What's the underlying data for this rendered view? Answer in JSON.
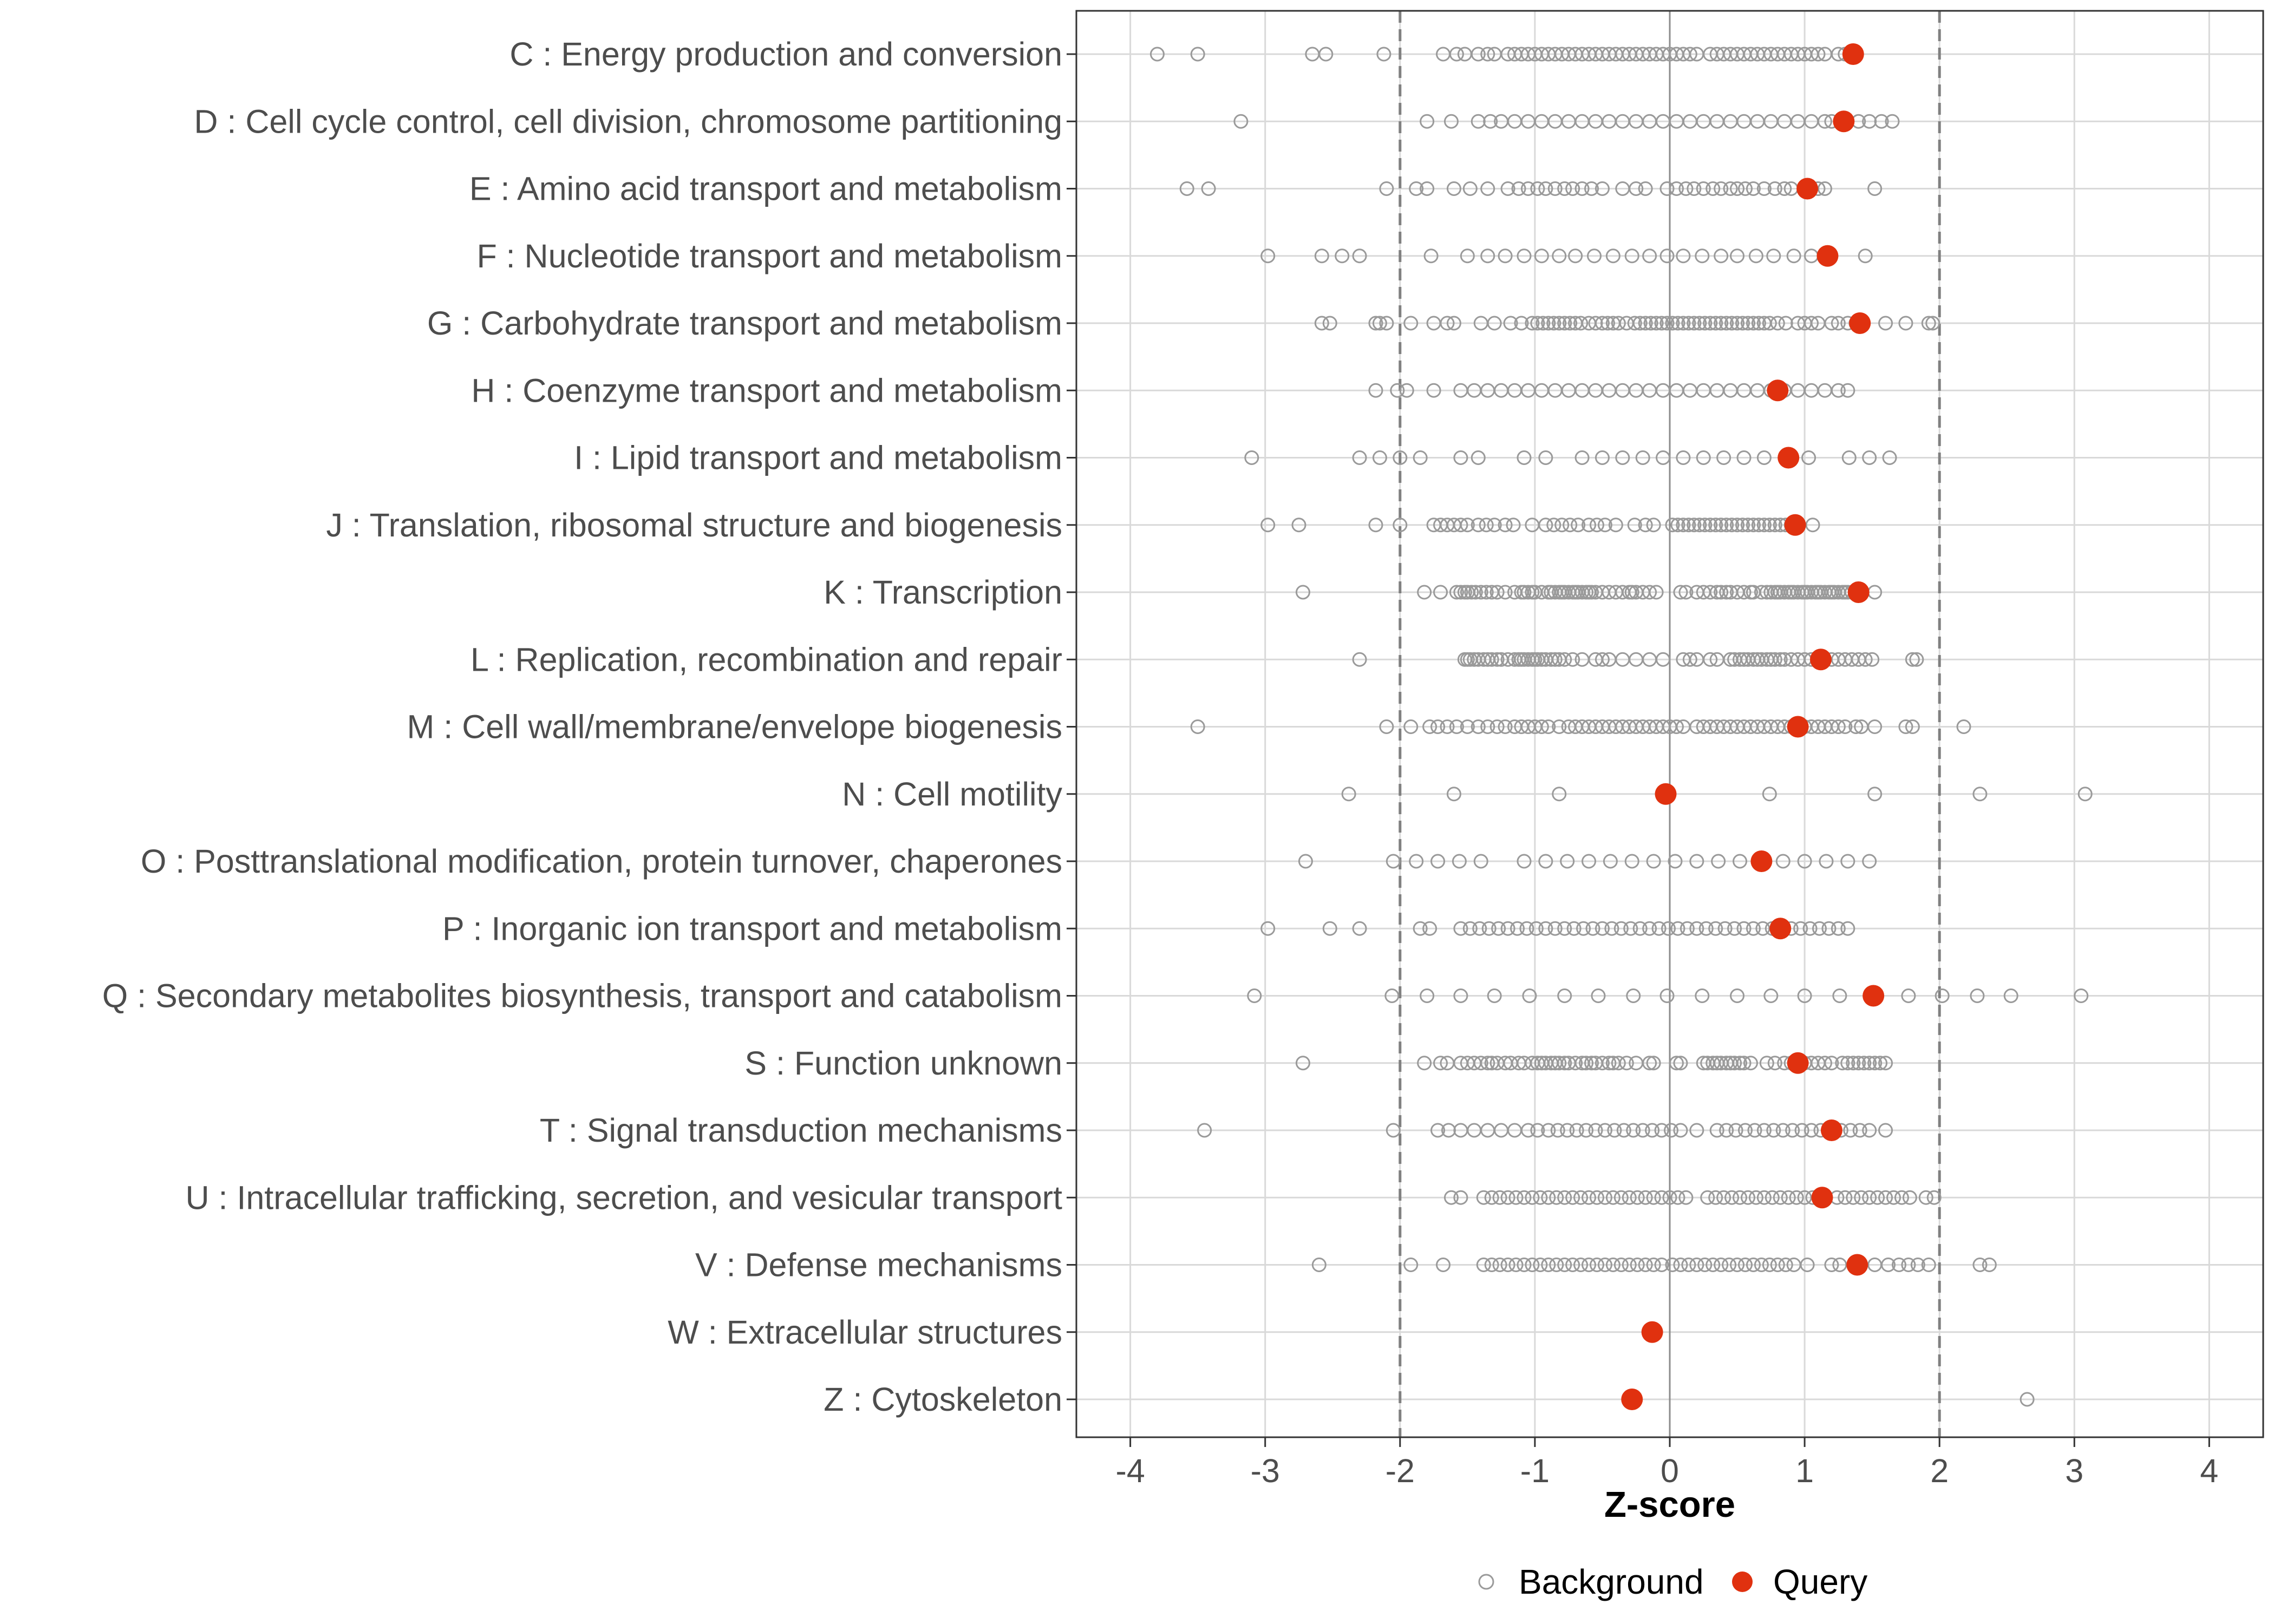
{
  "chart_data": {
    "type": "scatter",
    "xlabel": "Z-score",
    "xlim": [
      -4.4,
      4.4
    ],
    "xticks": [
      -4,
      -3,
      -2,
      -1,
      0,
      1,
      2,
      3,
      4
    ],
    "xtick_labels": [
      "-4",
      "-3",
      "-2",
      "-1",
      "0",
      "1",
      "2",
      "3",
      "4"
    ],
    "threshold_lines": [
      -2,
      2
    ],
    "zero_line": 0,
    "grid": true,
    "legend_position": "bottom",
    "legend": [
      {
        "name": "Background",
        "marker": "open-circle",
        "color": "#999999"
      },
      {
        "name": "Query",
        "marker": "filled-circle",
        "color": "#e0310f"
      }
    ],
    "categories": [
      {
        "label": "C : Energy production and conversion",
        "query": 1.36,
        "background": [
          -3.8,
          -3.5,
          -2.65,
          -2.55,
          -2.12,
          -1.68,
          -1.58,
          -1.52,
          -1.42,
          -1.35,
          -1.3,
          -1.2,
          -1.15,
          -1.1,
          -1.05,
          -1.0,
          -0.95,
          -0.9,
          -0.85,
          -0.8,
          -0.75,
          -0.7,
          -0.65,
          -0.6,
          -0.55,
          -0.5,
          -0.45,
          -0.4,
          -0.35,
          -0.3,
          -0.25,
          -0.2,
          -0.15,
          -0.1,
          -0.05,
          0.0,
          0.05,
          0.1,
          0.15,
          0.2,
          0.3,
          0.35,
          0.4,
          0.45,
          0.5,
          0.55,
          0.6,
          0.65,
          0.7,
          0.75,
          0.8,
          0.85,
          0.9,
          0.95,
          1.0,
          1.05,
          1.1,
          1.15,
          1.25,
          1.3
        ]
      },
      {
        "label": "D : Cell cycle control, cell division, chromosome partitioning",
        "query": 1.29,
        "background": [
          -3.18,
          -1.8,
          -1.62,
          -1.42,
          -1.33,
          -1.25,
          -1.15,
          -1.05,
          -0.95,
          -0.85,
          -0.75,
          -0.65,
          -0.55,
          -0.45,
          -0.35,
          -0.25,
          -0.15,
          -0.05,
          0.05,
          0.15,
          0.25,
          0.35,
          0.45,
          0.55,
          0.65,
          0.75,
          0.85,
          0.95,
          1.05,
          1.15,
          1.2,
          1.4,
          1.48,
          1.57,
          1.65
        ]
      },
      {
        "label": "E : Amino acid transport and metabolism",
        "query": 1.02,
        "background": [
          -3.58,
          -3.42,
          -2.1,
          -1.88,
          -1.8,
          -1.6,
          -1.48,
          -1.35,
          -1.2,
          -1.12,
          -1.05,
          -0.98,
          -0.92,
          -0.85,
          -0.78,
          -0.72,
          -0.65,
          -0.58,
          -0.5,
          -0.35,
          -0.25,
          -0.18,
          -0.02,
          0.05,
          0.12,
          0.18,
          0.25,
          0.32,
          0.38,
          0.45,
          0.5,
          0.56,
          0.62,
          0.7,
          0.78,
          0.85,
          0.9,
          1.1,
          1.15,
          1.52
        ]
      },
      {
        "label": "F : Nucleotide transport and metabolism",
        "query": 1.17,
        "background": [
          -2.98,
          -2.58,
          -2.43,
          -2.3,
          -1.77,
          -1.5,
          -1.35,
          -1.22,
          -1.08,
          -0.95,
          -0.82,
          -0.7,
          -0.56,
          -0.42,
          -0.28,
          -0.15,
          -0.02,
          0.1,
          0.24,
          0.38,
          0.5,
          0.64,
          0.77,
          0.92,
          1.05,
          1.45
        ]
      },
      {
        "label": "G : Carbohydrate transport and metabolism",
        "query": 1.41,
        "background": [
          -2.58,
          -2.52,
          -2.18,
          -2.15,
          -2.1,
          -1.92,
          -1.75,
          -1.65,
          -1.6,
          -1.4,
          -1.3,
          -1.18,
          -1.1,
          -1.02,
          -0.98,
          -0.94,
          -0.9,
          -0.86,
          -0.82,
          -0.78,
          -0.74,
          -0.7,
          -0.66,
          -0.6,
          -0.55,
          -0.5,
          -0.46,
          -0.42,
          -0.38,
          -0.32,
          -0.26,
          -0.22,
          -0.18,
          -0.14,
          -0.1,
          -0.06,
          -0.02,
          0.02,
          0.06,
          0.1,
          0.14,
          0.18,
          0.22,
          0.26,
          0.3,
          0.34,
          0.38,
          0.42,
          0.46,
          0.5,
          0.54,
          0.58,
          0.62,
          0.66,
          0.7,
          0.74,
          0.8,
          0.86,
          0.95,
          1.0,
          1.05,
          1.1,
          1.2,
          1.25,
          1.32,
          1.38,
          1.6,
          1.75,
          1.92,
          1.95
        ]
      },
      {
        "label": "H : Coenzyme transport and metabolism",
        "query": 0.8,
        "background": [
          -2.18,
          -2.02,
          -1.95,
          -1.75,
          -1.55,
          -1.45,
          -1.35,
          -1.25,
          -1.15,
          -1.05,
          -0.95,
          -0.85,
          -0.75,
          -0.65,
          -0.55,
          -0.45,
          -0.35,
          -0.25,
          -0.15,
          -0.05,
          0.05,
          0.15,
          0.25,
          0.35,
          0.45,
          0.55,
          0.65,
          0.75,
          0.85,
          0.95,
          1.05,
          1.15,
          1.25,
          1.32
        ]
      },
      {
        "label": "I : Lipid transport and metabolism",
        "query": 0.88,
        "background": [
          -3.1,
          -2.3,
          -2.15,
          -2.0,
          -1.85,
          -1.55,
          -1.42,
          -1.08,
          -0.92,
          -0.65,
          -0.5,
          -0.35,
          -0.2,
          -0.05,
          0.1,
          0.25,
          0.4,
          0.55,
          0.7,
          1.03,
          1.33,
          1.48,
          1.63
        ]
      },
      {
        "label": "J : Translation, ribosomal structure and biogenesis",
        "query": 0.93,
        "background": [
          -2.98,
          -2.75,
          -2.18,
          -2.0,
          -1.75,
          -1.7,
          -1.65,
          -1.6,
          -1.55,
          -1.5,
          -1.42,
          -1.36,
          -1.3,
          -1.22,
          -1.16,
          -1.02,
          -0.92,
          -0.86,
          -0.8,
          -0.74,
          -0.68,
          -0.6,
          -0.54,
          -0.48,
          -0.4,
          -0.26,
          -0.18,
          -0.12,
          0.02,
          0.06,
          0.1,
          0.14,
          0.18,
          0.22,
          0.26,
          0.3,
          0.34,
          0.38,
          0.42,
          0.46,
          0.5,
          0.54,
          0.58,
          0.62,
          0.66,
          0.7,
          0.74,
          0.78,
          0.82,
          0.86,
          0.9,
          1.06
        ]
      },
      {
        "label": "K : Transcription",
        "query": 1.4,
        "background": [
          -2.72,
          -1.82,
          -1.7,
          -1.58,
          -1.55,
          -1.52,
          -1.5,
          -1.47,
          -1.44,
          -1.4,
          -1.36,
          -1.32,
          -1.28,
          -1.22,
          -1.15,
          -1.1,
          -1.08,
          -1.05,
          -1.02,
          -1.0,
          -0.95,
          -0.9,
          -0.88,
          -0.85,
          -0.82,
          -0.8,
          -0.78,
          -0.75,
          -0.72,
          -0.7,
          -0.68,
          -0.65,
          -0.62,
          -0.6,
          -0.58,
          -0.55,
          -0.5,
          -0.45,
          -0.4,
          -0.35,
          -0.3,
          -0.28,
          -0.25,
          -0.2,
          -0.15,
          -0.1,
          0.08,
          0.12,
          0.2,
          0.25,
          0.3,
          0.35,
          0.38,
          0.42,
          0.45,
          0.5,
          0.55,
          0.6,
          0.62,
          0.68,
          0.72,
          0.75,
          0.78,
          0.8,
          0.82,
          0.85,
          0.88,
          0.9,
          0.92,
          0.95,
          0.98,
          1.0,
          1.02,
          1.05,
          1.08,
          1.1,
          1.12,
          1.15,
          1.18,
          1.2,
          1.22,
          1.25,
          1.28,
          1.3,
          1.32,
          1.35,
          1.38,
          1.52
        ]
      },
      {
        "label": "L : Replication, recombination and repair",
        "query": 1.12,
        "background": [
          -2.3,
          -1.52,
          -1.5,
          -1.48,
          -1.45,
          -1.42,
          -1.38,
          -1.35,
          -1.32,
          -1.28,
          -1.25,
          -1.2,
          -1.15,
          -1.12,
          -1.1,
          -1.08,
          -1.05,
          -1.02,
          -1.0,
          -0.98,
          -0.95,
          -0.92,
          -0.88,
          -0.85,
          -0.82,
          -0.78,
          -0.72,
          -0.65,
          -0.55,
          -0.5,
          -0.45,
          -0.35,
          -0.25,
          -0.15,
          -0.05,
          0.1,
          0.15,
          0.2,
          0.3,
          0.35,
          0.45,
          0.48,
          0.52,
          0.55,
          0.58,
          0.62,
          0.65,
          0.68,
          0.72,
          0.75,
          0.78,
          0.82,
          0.85,
          0.9,
          0.95,
          1.0,
          1.05,
          1.2,
          1.25,
          1.3,
          1.35,
          1.4,
          1.45,
          1.5,
          1.8,
          1.83
        ]
      },
      {
        "label": "M : Cell wall/membrane/envelope biogenesis",
        "query": 0.95,
        "background": [
          -3.5,
          -2.1,
          -1.92,
          -1.78,
          -1.72,
          -1.65,
          -1.58,
          -1.5,
          -1.42,
          -1.35,
          -1.28,
          -1.22,
          -1.15,
          -1.1,
          -1.05,
          -1.0,
          -0.95,
          -0.9,
          -0.82,
          -0.75,
          -0.7,
          -0.65,
          -0.6,
          -0.55,
          -0.5,
          -0.45,
          -0.4,
          -0.35,
          -0.3,
          -0.25,
          -0.2,
          -0.15,
          -0.1,
          -0.05,
          0.0,
          0.05,
          0.1,
          0.2,
          0.25,
          0.3,
          0.35,
          0.4,
          0.45,
          0.5,
          0.55,
          0.6,
          0.65,
          0.7,
          0.75,
          0.8,
          0.85,
          0.9,
          1.0,
          1.05,
          1.1,
          1.15,
          1.2,
          1.25,
          1.3,
          1.38,
          1.42,
          1.52,
          1.75,
          1.8,
          2.18
        ]
      },
      {
        "label": "N : Cell motility",
        "query": -0.03,
        "background": [
          -2.38,
          -1.6,
          -0.82,
          0.74,
          1.52,
          2.3,
          3.08
        ]
      },
      {
        "label": "O : Posttranslational modification, protein turnover, chaperones",
        "query": 0.68,
        "background": [
          -2.7,
          -2.05,
          -1.88,
          -1.72,
          -1.56,
          -1.4,
          -1.08,
          -0.92,
          -0.76,
          -0.6,
          -0.44,
          -0.28,
          -0.12,
          0.04,
          0.2,
          0.36,
          0.52,
          0.84,
          1.0,
          1.16,
          1.32,
          1.48
        ]
      },
      {
        "label": "P : Inorganic ion transport and metabolism",
        "query": 0.82,
        "background": [
          -2.98,
          -2.52,
          -2.3,
          -1.85,
          -1.78,
          -1.55,
          -1.48,
          -1.41,
          -1.34,
          -1.27,
          -1.2,
          -1.13,
          -1.06,
          -0.99,
          -0.92,
          -0.85,
          -0.78,
          -0.71,
          -0.64,
          -0.57,
          -0.5,
          -0.43,
          -0.36,
          -0.29,
          -0.22,
          -0.15,
          -0.08,
          -0.01,
          0.06,
          0.13,
          0.2,
          0.27,
          0.34,
          0.41,
          0.48,
          0.55,
          0.62,
          0.69,
          0.76,
          0.9,
          0.97,
          1.04,
          1.11,
          1.18,
          1.25,
          1.32
        ]
      },
      {
        "label": "Q : Secondary metabolites biosynthesis, transport and catabolism",
        "query": 1.51,
        "background": [
          -3.08,
          -2.06,
          -1.8,
          -1.55,
          -1.3,
          -1.04,
          -0.78,
          -0.53,
          -0.27,
          -0.02,
          0.24,
          0.5,
          0.75,
          1.0,
          1.26,
          1.77,
          2.02,
          2.28,
          2.53,
          3.05
        ]
      },
      {
        "label": "S : Function unknown",
        "query": 0.95,
        "background": [
          -2.72,
          -1.82,
          -1.7,
          -1.65,
          -1.55,
          -1.5,
          -1.45,
          -1.4,
          -1.35,
          -1.32,
          -1.28,
          -1.22,
          -1.18,
          -1.12,
          -1.08,
          -1.02,
          -0.98,
          -0.95,
          -0.92,
          -0.88,
          -0.85,
          -0.82,
          -0.78,
          -0.75,
          -0.7,
          -0.65,
          -0.62,
          -0.58,
          -0.55,
          -0.5,
          -0.45,
          -0.42,
          -0.38,
          -0.32,
          -0.25,
          -0.15,
          -0.12,
          0.05,
          0.08,
          0.25,
          0.28,
          0.32,
          0.35,
          0.38,
          0.42,
          0.45,
          0.48,
          0.52,
          0.55,
          0.6,
          0.72,
          0.78,
          0.85,
          0.9,
          1.0,
          1.05,
          1.1,
          1.15,
          1.2,
          1.28,
          1.32,
          1.36,
          1.4,
          1.44,
          1.48,
          1.52,
          1.56,
          1.6
        ]
      },
      {
        "label": "T : Signal transduction mechanisms",
        "query": 1.2,
        "background": [
          -3.45,
          -2.05,
          -1.72,
          -1.64,
          -1.55,
          -1.45,
          -1.35,
          -1.25,
          -1.15,
          -1.05,
          -0.98,
          -0.9,
          -0.83,
          -0.76,
          -0.69,
          -0.62,
          -0.55,
          -0.48,
          -0.41,
          -0.34,
          -0.27,
          -0.2,
          -0.13,
          -0.06,
          0.01,
          0.08,
          0.2,
          0.35,
          0.42,
          0.49,
          0.56,
          0.63,
          0.7,
          0.77,
          0.84,
          0.91,
          0.98,
          1.05,
          1.12,
          1.27,
          1.34,
          1.41,
          1.48,
          1.6
        ]
      },
      {
        "label": "U : Intracellular trafficking, secretion, and vesicular transport",
        "query": 1.13,
        "background": [
          -1.62,
          -1.55,
          -1.38,
          -1.32,
          -1.26,
          -1.2,
          -1.14,
          -1.08,
          -1.02,
          -0.96,
          -0.9,
          -0.84,
          -0.78,
          -0.72,
          -0.66,
          -0.6,
          -0.54,
          -0.48,
          -0.42,
          -0.36,
          -0.3,
          -0.24,
          -0.18,
          -0.12,
          -0.06,
          0.0,
          0.06,
          0.12,
          0.28,
          0.34,
          0.4,
          0.46,
          0.52,
          0.58,
          0.64,
          0.7,
          0.76,
          0.82,
          0.88,
          0.94,
          1.0,
          1.06,
          1.24,
          1.3,
          1.36,
          1.42,
          1.48,
          1.54,
          1.6,
          1.66,
          1.72,
          1.78,
          1.9,
          1.96
        ]
      },
      {
        "label": "V : Defense mechanisms",
        "query": 1.39,
        "background": [
          -2.6,
          -1.92,
          -1.68,
          -1.38,
          -1.32,
          -1.26,
          -1.2,
          -1.14,
          -1.08,
          -1.02,
          -0.96,
          -0.9,
          -0.84,
          -0.78,
          -0.72,
          -0.66,
          -0.6,
          -0.54,
          -0.48,
          -0.42,
          -0.36,
          -0.3,
          -0.24,
          -0.18,
          -0.12,
          -0.06,
          0.02,
          0.08,
          0.14,
          0.2,
          0.26,
          0.32,
          0.38,
          0.44,
          0.5,
          0.56,
          0.62,
          0.68,
          0.74,
          0.8,
          0.86,
          0.92,
          1.02,
          1.2,
          1.26,
          1.52,
          1.62,
          1.7,
          1.77,
          1.84,
          1.92,
          2.3,
          2.37
        ]
      },
      {
        "label": "W : Extracellular structures",
        "query": -0.13,
        "background": []
      },
      {
        "label": "Z : Cytoskeleton",
        "query": -0.28,
        "background": [
          2.65
        ]
      }
    ]
  }
}
